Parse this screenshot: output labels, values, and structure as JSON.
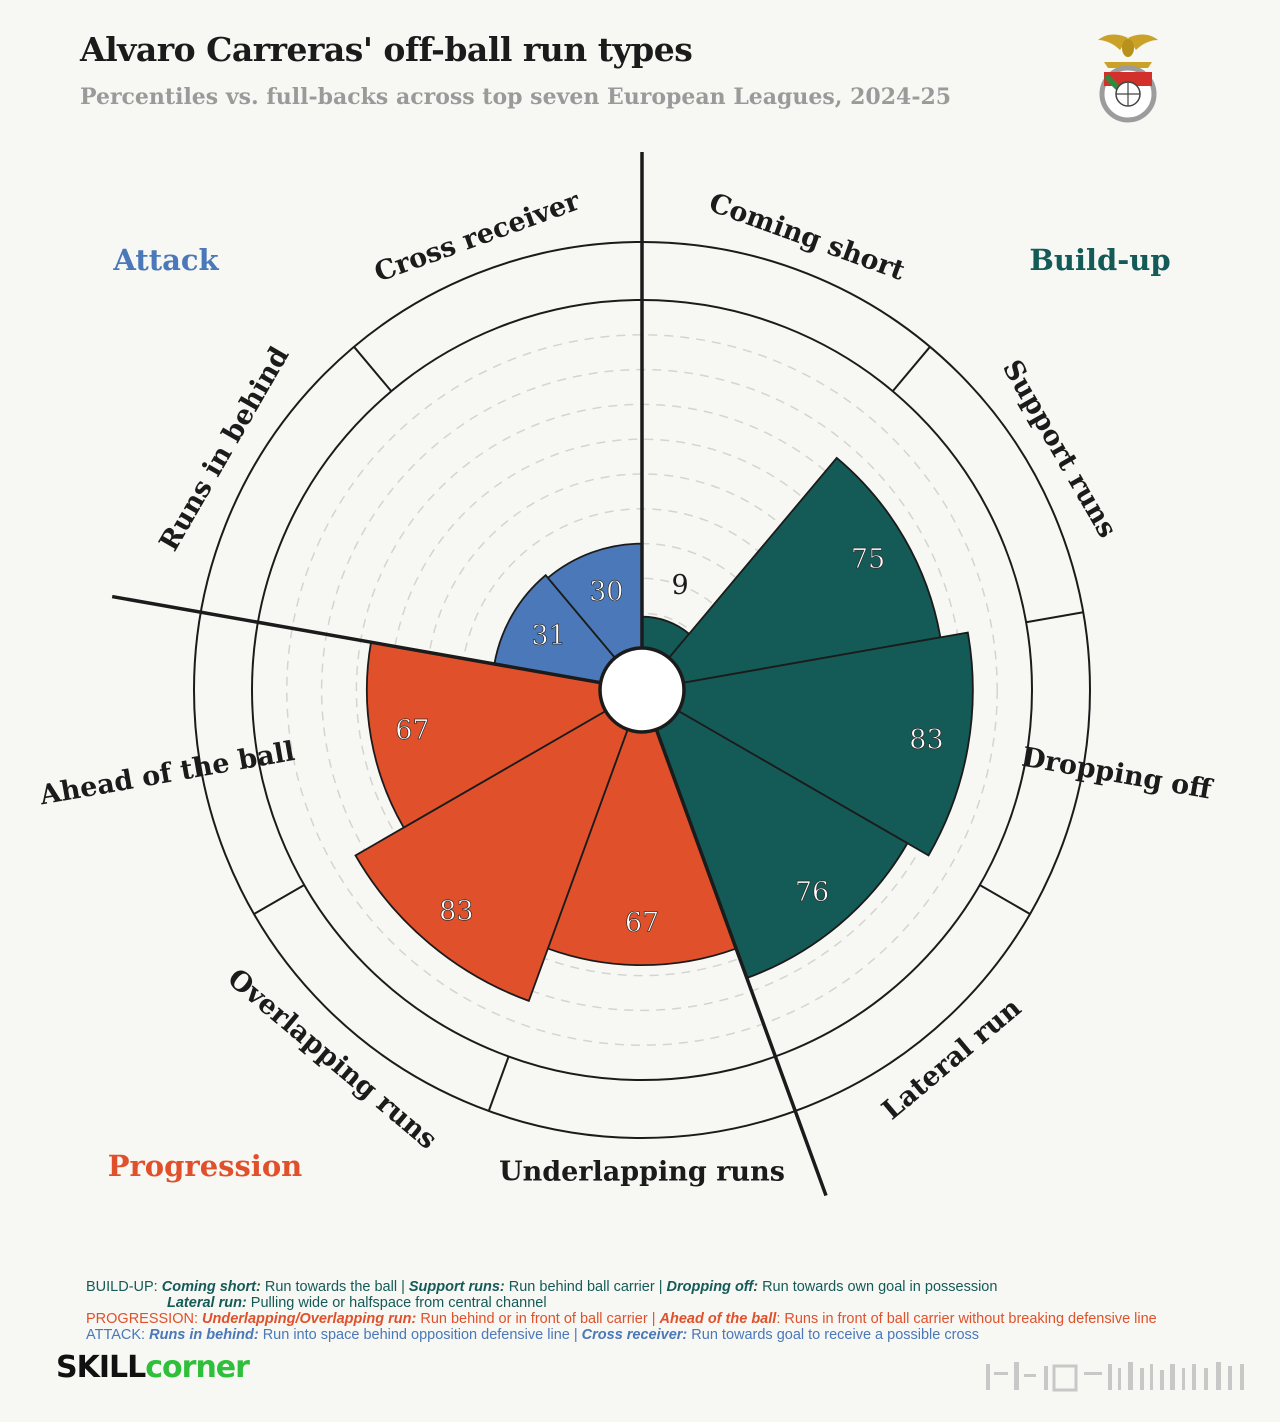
{
  "title": "Alvaro Carreras' off-ball run types",
  "subtitle": "Percentiles vs. full-backs across top seven European Leagues, 2024-25",
  "crest": {
    "icon": "benfica-crest-icon"
  },
  "colors": {
    "build_up": "#145b57",
    "progression": "#e0512b",
    "attack": "#4a78b8",
    "background": "#f7f7f4"
  },
  "chart_data": {
    "type": "polar-bar",
    "title": "Alvaro Carreras' off-ball run types",
    "subtitle": "Percentiles vs. full-backs across top seven European Leagues, 2024-25",
    "rlim": [
      0,
      100
    ],
    "grid": true,
    "groups": [
      {
        "name": "Build-up",
        "color": "#145b57",
        "legend_position": "top-right"
      },
      {
        "name": "Progression",
        "color": "#e0512b",
        "legend_position": "bottom-left"
      },
      {
        "name": "Attack",
        "color": "#4a78b8",
        "legend_position": "top-left"
      }
    ],
    "categories": [
      "Coming short",
      "Support runs",
      "Dropping off",
      "Lateral run",
      "Underlapping runs",
      "Overlapping runs",
      "Ahead of the ball",
      "Runs in behind",
      "Cross receiver"
    ],
    "values": [
      9,
      75,
      83,
      76,
      67,
      83,
      67,
      31,
      30
    ],
    "category_groups": [
      "Build-up",
      "Build-up",
      "Build-up",
      "Build-up",
      "Progression",
      "Progression",
      "Progression",
      "Attack",
      "Attack"
    ]
  },
  "legend": {
    "build_up": {
      "prefix": "BUILD-UP:",
      "items": [
        {
          "term": "Coming short:",
          "desc": "Run towards the ball"
        },
        {
          "term": "Support runs:",
          "desc": "Run behind ball carrier"
        },
        {
          "term": "Dropping off:",
          "desc": "Run towards own goal in possession"
        },
        {
          "term": "Lateral run:",
          "desc": "Pulling wide or halfspace from central channel"
        }
      ]
    },
    "progression": {
      "prefix": "PROGRESSION:",
      "items": [
        {
          "term": "Underlapping/Overlapping run:",
          "desc": "Run behind or in front of ball carrier"
        },
        {
          "term": "Ahead of the ball",
          "desc": ": Runs in front of ball carrier without breaking defensive line"
        }
      ]
    },
    "attack": {
      "prefix": "ATTACK:",
      "items": [
        {
          "term": "Runs in behind:",
          "desc": "Run into space behind opposition defensive line"
        },
        {
          "term": "Cross receiver:",
          "desc": "Run towards goal to receive a possible cross"
        }
      ]
    },
    "separator": " | "
  },
  "brand": {
    "part1": "SKILL",
    "part2": "corner"
  }
}
